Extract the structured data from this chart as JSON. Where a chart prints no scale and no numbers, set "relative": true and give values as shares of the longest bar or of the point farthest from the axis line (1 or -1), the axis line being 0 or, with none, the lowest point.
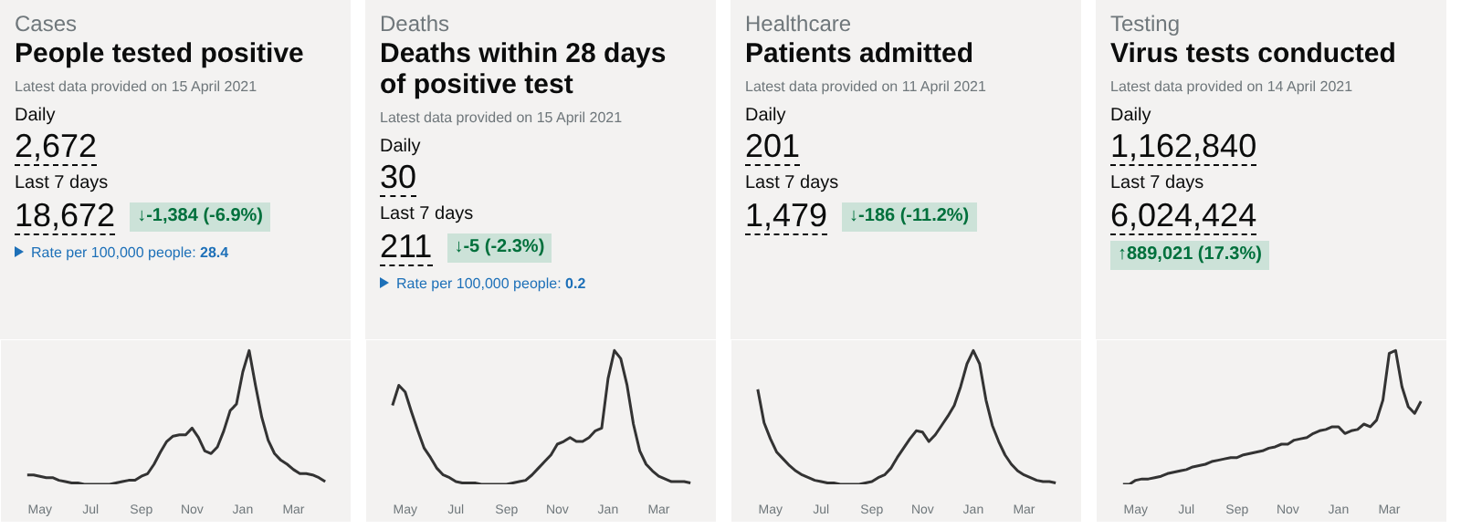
{
  "chart_data": [
    {
      "type": "line",
      "relative": true,
      "subtitle": "Cases",
      "title": "People tested positive",
      "annotations": [
        "Latest data provided on 15 April 2021",
        "Daily",
        "2,672",
        "Last 7 days",
        "18,672",
        "↓-1,384 (-6.9%)",
        "Rate per 100,000 people:",
        "28.4"
      ],
      "categories": [
        null,
        null,
        "May",
        null,
        null,
        null,
        null,
        null,
        null,
        null,
        "Jul",
        null,
        null,
        null,
        null,
        null,
        null,
        null,
        "Sep",
        null,
        null,
        null,
        null,
        null,
        null,
        null,
        "Nov",
        null,
        null,
        null,
        null,
        null,
        null,
        null,
        "Jan",
        null,
        null,
        null,
        null,
        null,
        null,
        null,
        "Mar",
        null,
        null,
        null,
        null,
        null
      ],
      "series": [
        {
          "color": "#333333",
          "values": [
            0.07,
            0.07,
            0.06,
            0.05,
            0.05,
            0.03,
            0.02,
            0.01,
            0.01,
            0,
            0,
            0,
            0,
            0,
            0.01,
            0.02,
            0.03,
            0.03,
            0.06,
            0.08,
            0.15,
            0.24,
            0.32,
            0.36,
            0.37,
            0.37,
            0.42,
            0.35,
            0.25,
            0.23,
            0.28,
            0.4,
            0.55,
            0.6,
            0.84,
            1.0,
            0.74,
            0.5,
            0.33,
            0.23,
            0.18,
            0.15,
            0.11,
            0.08,
            0.08,
            0.07,
            0.05,
            0.02
          ]
        }
      ]
    },
    {
      "type": "line",
      "relative": true,
      "subtitle": "Deaths",
      "title": "Deaths within 28 days of positive test",
      "annotations": [
        "Latest data provided on 15 April 2021",
        "Daily",
        "30",
        "Last 7 days",
        "211",
        "↓-5 (-2.3%)",
        "Rate per 100,000 people:",
        "0.2"
      ],
      "categories": [
        null,
        null,
        "May",
        null,
        null,
        null,
        null,
        null,
        null,
        null,
        "Jul",
        null,
        null,
        null,
        null,
        null,
        null,
        null,
        "Sep",
        null,
        null,
        null,
        null,
        null,
        null,
        null,
        "Nov",
        null,
        null,
        null,
        null,
        null,
        null,
        null,
        "Jan",
        null,
        null,
        null,
        null,
        null,
        null,
        null,
        "Mar",
        null,
        null,
        null,
        null,
        null
      ],
      "series": [
        {
          "color": "#333333",
          "values": [
            0.59,
            0.74,
            0.69,
            0.54,
            0.4,
            0.27,
            0.2,
            0.12,
            0.07,
            0.05,
            0.02,
            0.01,
            0.01,
            0.01,
            0,
            0,
            0,
            0,
            0,
            0.01,
            0.02,
            0.03,
            0.07,
            0.12,
            0.17,
            0.22,
            0.3,
            0.32,
            0.35,
            0.32,
            0.32,
            0.35,
            0.4,
            0.42,
            0.79,
            1.0,
            0.94,
            0.74,
            0.45,
            0.25,
            0.15,
            0.1,
            0.06,
            0.04,
            0.02,
            0.02,
            0.02,
            0.01
          ]
        }
      ]
    },
    {
      "type": "line",
      "relative": true,
      "subtitle": "Healthcare",
      "title": "Patients admitted",
      "annotations": [
        "Latest data provided on 11 April 2021",
        "Daily",
        "201",
        "Last 7 days",
        "1,479",
        "↓-186 (-11.2%)"
      ],
      "categories": [
        null,
        null,
        "May",
        null,
        null,
        null,
        null,
        null,
        null,
        null,
        "Jul",
        null,
        null,
        null,
        null,
        null,
        null,
        null,
        "Sep",
        null,
        null,
        null,
        null,
        null,
        null,
        null,
        "Nov",
        null,
        null,
        null,
        null,
        null,
        null,
        null,
        "Jan",
        null,
        null,
        null,
        null,
        null,
        null,
        null,
        "Mar",
        null,
        null,
        null,
        null,
        null
      ],
      "series": [
        {
          "color": "#333333",
          "values": [
            0.71,
            0.46,
            0.34,
            0.24,
            0.19,
            0.14,
            0.1,
            0.07,
            0.05,
            0.03,
            0.02,
            0.01,
            0.01,
            0,
            0,
            0,
            0,
            0.01,
            0.02,
            0.05,
            0.07,
            0.12,
            0.2,
            0.27,
            0.34,
            0.4,
            0.39,
            0.32,
            0.37,
            0.44,
            0.51,
            0.59,
            0.73,
            0.9,
            1.0,
            0.9,
            0.63,
            0.44,
            0.32,
            0.22,
            0.15,
            0.1,
            0.07,
            0.05,
            0.03,
            0.02,
            0.02,
            0.01
          ]
        }
      ]
    },
    {
      "type": "line",
      "relative": true,
      "subtitle": "Testing",
      "title": "Virus tests conducted",
      "annotations": [
        "Latest data provided on 14 April 2021",
        "Daily",
        "1,162,840",
        "Last 7 days",
        "6,024,424",
        "↑889,021 (17.3%)"
      ],
      "categories": [
        null,
        null,
        "May",
        null,
        null,
        null,
        null,
        null,
        null,
        null,
        "Jul",
        null,
        null,
        null,
        null,
        null,
        null,
        null,
        "Sep",
        null,
        null,
        null,
        null,
        null,
        null,
        null,
        "Nov",
        null,
        null,
        null,
        null,
        null,
        null,
        null,
        "Jan",
        null,
        null,
        null,
        null,
        null,
        null,
        null,
        "Mar",
        null,
        null,
        null,
        null,
        null
      ],
      "series": [
        {
          "color": "#333333",
          "values": [
            0,
            0,
            0.03,
            0.04,
            0.04,
            0.05,
            0.06,
            0.08,
            0.09,
            0.1,
            0.11,
            0.13,
            0.14,
            0.15,
            0.17,
            0.18,
            0.19,
            0.2,
            0.2,
            0.22,
            0.23,
            0.24,
            0.25,
            0.27,
            0.28,
            0.3,
            0.3,
            0.33,
            0.34,
            0.35,
            0.38,
            0.4,
            0.41,
            0.43,
            0.43,
            0.38,
            0.4,
            0.41,
            0.45,
            0.43,
            0.48,
            0.63,
            0.98,
            1.0,
            0.73,
            0.58,
            0.53,
            0.62
          ]
        }
      ]
    }
  ]
}
